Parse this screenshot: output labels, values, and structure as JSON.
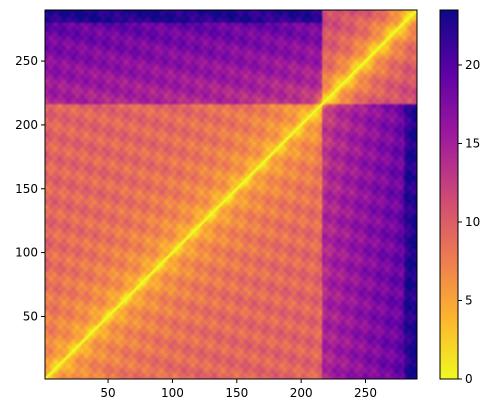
{
  "chart_data": {
    "type": "heatmap",
    "title": "",
    "xlabel": "",
    "ylabel": "",
    "xlim": [
      1,
      290
    ],
    "ylim": [
      1,
      290
    ],
    "x_ticks": [
      50,
      100,
      150,
      200,
      250
    ],
    "y_ticks": [
      50,
      100,
      150,
      200,
      250
    ],
    "colorbar": {
      "colormap": "plasma_r",
      "range": [
        0,
        23.5
      ],
      "ticks": [
        0,
        5,
        10,
        15,
        20
      ],
      "colors": [
        "#f0f921",
        "#fdb42f",
        "#ed7953",
        "#cc4778",
        "#9c179e",
        "#5c01a6",
        "#0d0887"
      ]
    },
    "grid": false,
    "description_values": {
      "matrix_size": 290,
      "diagonal_value": 0,
      "block_boundaries": [
        215,
        285
      ],
      "max_value": 23.5
    }
  }
}
